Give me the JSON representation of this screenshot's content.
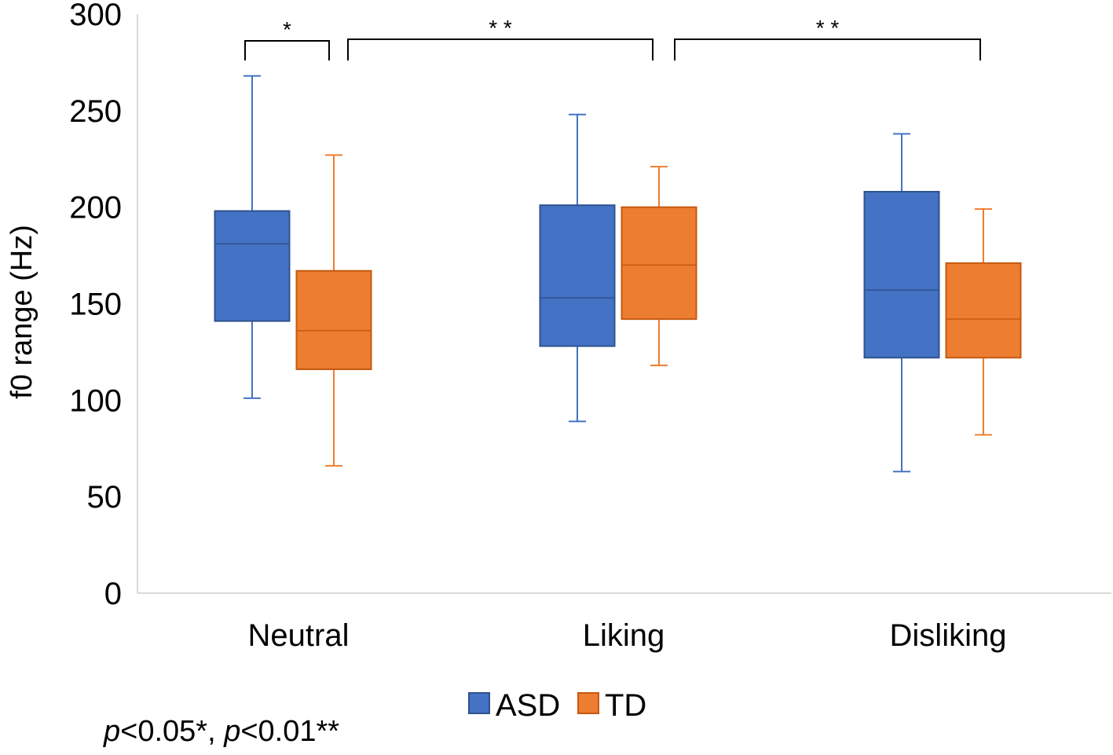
{
  "chart_data": {
    "type": "boxplot",
    "ylabel": "f0 range (Hz)",
    "ylim": [
      0,
      300
    ],
    "yticks": [
      0,
      50,
      100,
      150,
      200,
      250,
      300
    ],
    "categories": [
      "Neutral",
      "Liking",
      "Disliking"
    ],
    "series": [
      {
        "name": "ASD",
        "color": "#4472C4",
        "boxes": [
          {
            "min": 101,
            "q1": 141,
            "median": 181,
            "q3": 198,
            "max": 268
          },
          {
            "min": 89,
            "q1": 128,
            "median": 153,
            "q3": 201,
            "max": 248
          },
          {
            "min": 63,
            "q1": 122,
            "median": 157,
            "q3": 208,
            "max": 238
          }
        ]
      },
      {
        "name": "TD",
        "color": "#ED7D31",
        "boxes": [
          {
            "min": 66,
            "q1": 116,
            "median": 136,
            "q3": 167,
            "max": 227
          },
          {
            "min": 118,
            "q1": 142,
            "median": 170,
            "q3": 200,
            "max": 221
          },
          {
            "min": 82,
            "q1": 122,
            "median": 142,
            "q3": 171,
            "max": 199
          }
        ]
      }
    ],
    "significance": [
      {
        "from": "Neutral ASD",
        "to": "Neutral TD",
        "label": "*"
      },
      {
        "from": "Neutral TD",
        "to": "Liking TD",
        "label": "* *"
      },
      {
        "from": "Liking TD",
        "to": "Disliking TD",
        "label": "* *"
      }
    ],
    "legend": [
      "ASD",
      "TD"
    ],
    "footnote": {
      "p1": "p",
      "t1": "<0.05*, ",
      "p2": "p",
      "t2": "<0.01**"
    }
  }
}
